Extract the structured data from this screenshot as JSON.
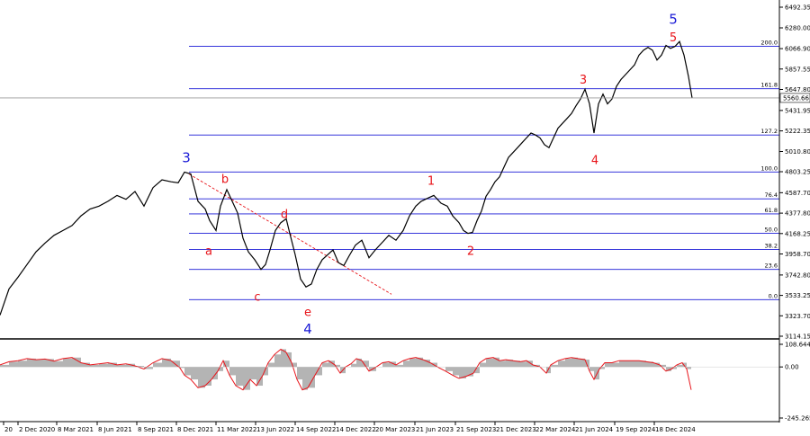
{
  "chart_data": {
    "type": "line",
    "instrument_last_price": "5560.66",
    "main_panel": {
      "price_axis_labels": [
        "6492.35",
        "6280.00",
        "6066.90",
        "5857.55",
        "5647.80",
        "5431.95",
        "5222.35",
        "5010.80",
        "4803.25",
        "4587.70",
        "4377.80",
        "4168.25",
        "3958.70",
        "3742.80",
        "3533.25",
        "3323.70",
        "3114.15"
      ],
      "ylim": [
        3114.15,
        6492.35
      ],
      "price_series": [
        [
          0,
          3330
        ],
        [
          10,
          3600
        ],
        [
          20,
          3720
        ],
        [
          30,
          3850
        ],
        [
          40,
          3980
        ],
        [
          50,
          4070
        ],
        [
          60,
          4150
        ],
        [
          70,
          4200
        ],
        [
          80,
          4250
        ],
        [
          90,
          4350
        ],
        [
          100,
          4420
        ],
        [
          110,
          4450
        ],
        [
          120,
          4500
        ],
        [
          130,
          4560
        ],
        [
          140,
          4520
        ],
        [
          150,
          4600
        ],
        [
          160,
          4450
        ],
        [
          170,
          4640
        ],
        [
          180,
          4720
        ],
        [
          190,
          4700
        ],
        [
          198,
          4690
        ],
        [
          205,
          4800
        ],
        [
          212,
          4780
        ],
        [
          220,
          4500
        ],
        [
          228,
          4420
        ],
        [
          233,
          4300
        ],
        [
          240,
          4200
        ],
        [
          245,
          4450
        ],
        [
          252,
          4620
        ],
        [
          258,
          4500
        ],
        [
          264,
          4380
        ],
        [
          270,
          4120
        ],
        [
          276,
          3980
        ],
        [
          283,
          3900
        ],
        [
          290,
          3800
        ],
        [
          295,
          3850
        ],
        [
          300,
          4000
        ],
        [
          306,
          4200
        ],
        [
          312,
          4280
        ],
        [
          318,
          4320
        ],
        [
          322,
          4170
        ],
        [
          328,
          3950
        ],
        [
          334,
          3700
        ],
        [
          340,
          3620
        ],
        [
          346,
          3650
        ],
        [
          352,
          3800
        ],
        [
          358,
          3900
        ],
        [
          364,
          3950
        ],
        [
          370,
          4000
        ],
        [
          376,
          3870
        ],
        [
          382,
          3840
        ],
        [
          388,
          3940
        ],
        [
          395,
          4050
        ],
        [
          402,
          4100
        ],
        [
          410,
          3920
        ],
        [
          417,
          4000
        ],
        [
          425,
          4080
        ],
        [
          432,
          4150
        ],
        [
          440,
          4100
        ],
        [
          448,
          4200
        ],
        [
          455,
          4350
        ],
        [
          462,
          4450
        ],
        [
          468,
          4500
        ],
        [
          475,
          4530
        ],
        [
          482,
          4560
        ],
        [
          490,
          4480
        ],
        [
          497,
          4450
        ],
        [
          503,
          4350
        ],
        [
          510,
          4280
        ],
        [
          515,
          4200
        ],
        [
          520,
          4170
        ],
        [
          525,
          4180
        ],
        [
          530,
          4300
        ],
        [
          535,
          4400
        ],
        [
          540,
          4550
        ],
        [
          545,
          4620
        ],
        [
          550,
          4700
        ],
        [
          555,
          4750
        ],
        [
          560,
          4850
        ],
        [
          565,
          4950
        ],
        [
          570,
          5000
        ],
        [
          575,
          5050
        ],
        [
          580,
          5100
        ],
        [
          585,
          5150
        ],
        [
          590,
          5200
        ],
        [
          595,
          5180
        ],
        [
          600,
          5150
        ],
        [
          605,
          5080
        ],
        [
          610,
          5050
        ],
        [
          615,
          5150
        ],
        [
          620,
          5250
        ],
        [
          625,
          5300
        ],
        [
          630,
          5350
        ],
        [
          635,
          5400
        ],
        [
          640,
          5480
        ],
        [
          645,
          5550
        ],
        [
          650,
          5650
        ],
        [
          655,
          5500
        ],
        [
          660,
          5200
        ],
        [
          665,
          5500
        ],
        [
          670,
          5600
        ],
        [
          675,
          5500
        ],
        [
          680,
          5550
        ],
        [
          685,
          5680
        ],
        [
          690,
          5750
        ],
        [
          695,
          5800
        ],
        [
          700,
          5850
        ],
        [
          705,
          5900
        ],
        [
          710,
          6000
        ],
        [
          715,
          6050
        ],
        [
          720,
          6080
        ],
        [
          725,
          6050
        ],
        [
          730,
          5950
        ],
        [
          735,
          6000
        ],
        [
          740,
          6100
        ],
        [
          745,
          6070
        ],
        [
          750,
          6090
        ],
        [
          755,
          6140
        ],
        [
          760,
          6000
        ],
        [
          765,
          5780
        ],
        [
          769,
          5560
        ]
      ],
      "fibonacci_levels": [
        {
          "label": "200.0",
          "price": 6090
        },
        {
          "label": "161.8",
          "price": 5655
        },
        {
          "label": "127.2",
          "price": 5180
        },
        {
          "label": "100.0",
          "price": 4800
        },
        {
          "label": "76.4",
          "price": 4525
        },
        {
          "label": "61.8",
          "price": 4370
        },
        {
          "label": "50.0",
          "price": 4170
        },
        {
          "label": "38.2",
          "price": 4005
        },
        {
          "label": "23.6",
          "price": 3800
        },
        {
          "label": "0.0",
          "price": 3490
        }
      ],
      "wave_labels": [
        {
          "text": "3",
          "color": "blue",
          "price_pos": 4900,
          "x_pos": 207
        },
        {
          "text": "b",
          "color": "red",
          "price_pos": 4690,
          "x_pos": 250
        },
        {
          "text": "a",
          "color": "red",
          "price_pos": 3950,
          "x_pos": 232
        },
        {
          "text": "c",
          "color": "red",
          "price_pos": 3480,
          "x_pos": 286
        },
        {
          "text": "d",
          "color": "red",
          "price_pos": 4330,
          "x_pos": 316
        },
        {
          "text": "e",
          "color": "red",
          "price_pos": 3320,
          "x_pos": 342
        },
        {
          "text": "4",
          "color": "blue",
          "price_pos": 3140,
          "x_pos": 342
        },
        {
          "text": "1",
          "color": "red",
          "price_pos": 4670,
          "x_pos": 479
        },
        {
          "text": "2",
          "color": "red",
          "price_pos": 3950,
          "x_pos": 523
        },
        {
          "text": "3",
          "color": "red",
          "price_pos": 5710,
          "x_pos": 648
        },
        {
          "text": "4",
          "color": "red",
          "price_pos": 4880,
          "x_pos": 661
        },
        {
          "text": "5",
          "color": "red",
          "price_pos": 6140,
          "x_pos": 748
        },
        {
          "text": "5",
          "color": "blue",
          "price_pos": 6320,
          "x_pos": 748
        }
      ],
      "trendline": {
        "from": [
          210,
          4780
        ],
        "to": [
          435,
          3545
        ],
        "style": "dashed",
        "color": "#e8141a"
      }
    },
    "oscillator_panel": {
      "axis_labels": [
        "108.644",
        "0.00",
        "-245.265"
      ],
      "ylim": [
        -245.265,
        108.644
      ],
      "series": [
        [
          0,
          10
        ],
        [
          10,
          25
        ],
        [
          20,
          30
        ],
        [
          30,
          40
        ],
        [
          40,
          35
        ],
        [
          50,
          38
        ],
        [
          60,
          28
        ],
        [
          70,
          40
        ],
        [
          80,
          45
        ],
        [
          90,
          20
        ],
        [
          100,
          10
        ],
        [
          110,
          15
        ],
        [
          120,
          20
        ],
        [
          130,
          10
        ],
        [
          140,
          15
        ],
        [
          150,
          5
        ],
        [
          160,
          -10
        ],
        [
          170,
          20
        ],
        [
          180,
          40
        ],
        [
          190,
          30
        ],
        [
          200,
          -5
        ],
        [
          205,
          -40
        ],
        [
          212,
          -60
        ],
        [
          220,
          -100
        ],
        [
          228,
          -90
        ],
        [
          235,
          -60
        ],
        [
          242,
          -20
        ],
        [
          248,
          30
        ],
        [
          255,
          -40
        ],
        [
          262,
          -90
        ],
        [
          270,
          -110
        ],
        [
          278,
          -60
        ],
        [
          285,
          -90
        ],
        [
          292,
          -40
        ],
        [
          298,
          20
        ],
        [
          305,
          60
        ],
        [
          312,
          85
        ],
        [
          318,
          70
        ],
        [
          324,
          20
        ],
        [
          330,
          -60
        ],
        [
          336,
          -110
        ],
        [
          342,
          -100
        ],
        [
          350,
          -40
        ],
        [
          358,
          20
        ],
        [
          365,
          30
        ],
        [
          372,
          10
        ],
        [
          378,
          -30
        ],
        [
          384,
          0
        ],
        [
          390,
          15
        ],
        [
          396,
          40
        ],
        [
          402,
          30
        ],
        [
          410,
          -20
        ],
        [
          418,
          0
        ],
        [
          425,
          20
        ],
        [
          432,
          25
        ],
        [
          440,
          10
        ],
        [
          448,
          30
        ],
        [
          455,
          40
        ],
        [
          462,
          45
        ],
        [
          470,
          35
        ],
        [
          478,
          20
        ],
        [
          486,
          0
        ],
        [
          495,
          -20
        ],
        [
          503,
          -40
        ],
        [
          510,
          -55
        ],
        [
          518,
          -45
        ],
        [
          526,
          -30
        ],
        [
          533,
          20
        ],
        [
          540,
          40
        ],
        [
          548,
          45
        ],
        [
          555,
          30
        ],
        [
          562,
          35
        ],
        [
          570,
          30
        ],
        [
          578,
          25
        ],
        [
          585,
          30
        ],
        [
          592,
          10
        ],
        [
          600,
          0
        ],
        [
          607,
          -30
        ],
        [
          612,
          10
        ],
        [
          620,
          30
        ],
        [
          628,
          40
        ],
        [
          635,
          45
        ],
        [
          642,
          40
        ],
        [
          650,
          35
        ],
        [
          655,
          -20
        ],
        [
          660,
          -60
        ],
        [
          666,
          -10
        ],
        [
          672,
          20
        ],
        [
          680,
          20
        ],
        [
          688,
          30
        ],
        [
          695,
          30
        ],
        [
          702,
          30
        ],
        [
          710,
          30
        ],
        [
          718,
          25
        ],
        [
          726,
          20
        ],
        [
          733,
          10
        ],
        [
          740,
          -20
        ],
        [
          746,
          -10
        ],
        [
          752,
          10
        ],
        [
          758,
          20
        ],
        [
          763,
          -10
        ],
        [
          768,
          -110
        ]
      ]
    },
    "time_axis_labels": [
      "20",
      "2 Dec 2020",
      "8 Mar 2021",
      "8 Jun 2021",
      "8 Sep 2021",
      "8 Dec 2021",
      "11 Mar 2022",
      "13 Jun 2022",
      "14 Sep 2022",
      "14 Dec 2022",
      "20 Mar 2023",
      "21 Jun 2023",
      "21 Sep 2023",
      "21 Dec 2023",
      "22 Mar 2024",
      "21 Jun 2024",
      "19 Sep 2024",
      "18 Dec 2024"
    ],
    "colors": {
      "price_line": "#000000",
      "fib_line": "#1a1ad6",
      "wave_red": "#e8141a",
      "wave_blue": "#1a1ad6",
      "osc_fill": "#b4b4b4",
      "osc_line": "#e8141a",
      "price_tag_bg": "#ffffff"
    }
  }
}
